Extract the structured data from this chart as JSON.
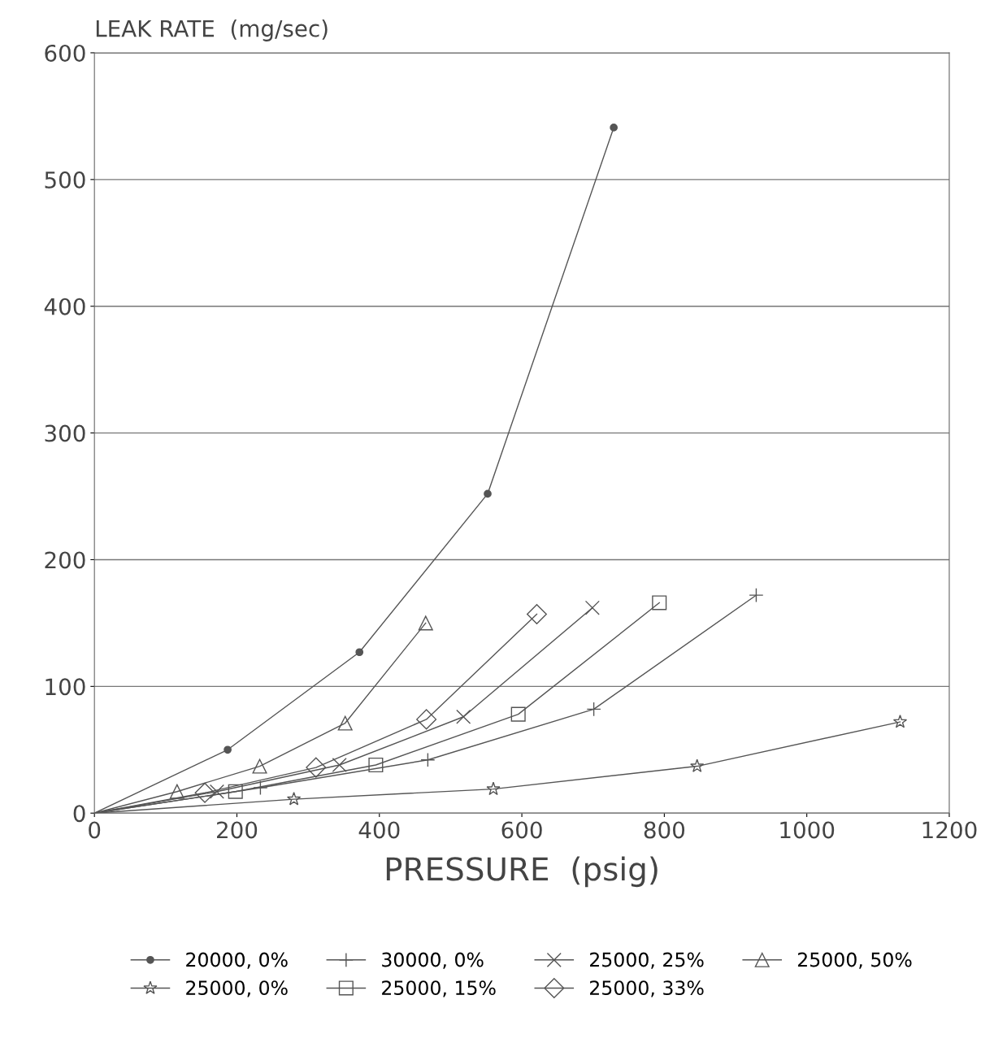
{
  "chart_data": {
    "type": "line",
    "ylabel": "LEAK RATE  (mg/sec)",
    "xlabel": "PRESSURE  (psig)",
    "xlim": [
      0,
      1200
    ],
    "xticks": [
      0,
      200,
      400,
      600,
      800,
      1000,
      1200
    ],
    "ylim": [
      0,
      600
    ],
    "yticks": [
      0,
      100,
      200,
      300,
      400,
      500,
      600
    ],
    "grid": "y",
    "legend": "bottom",
    "line_style": "solid",
    "series": [
      {
        "name": "20000, 0%",
        "color": "#555555",
        "marker": "circle",
        "x": [
          0,
          187,
          372,
          552,
          729
        ],
        "values": [
          0,
          50,
          127,
          252,
          541
        ]
      },
      {
        "name": "25000, 0%",
        "color": "#555555",
        "marker": "star",
        "x": [
          0,
          280,
          560,
          846,
          1131
        ],
        "values": [
          0,
          11,
          19,
          37,
          72
        ]
      },
      {
        "name": "30000, 0%",
        "color": "#555555",
        "marker": "cross",
        "x": [
          0,
          233,
          468,
          701,
          929
        ],
        "values": [
          0,
          20,
          42,
          82,
          172
        ]
      },
      {
        "name": "25000, 15%",
        "color": "#555555",
        "marker": "square",
        "x": [
          0,
          198,
          395,
          595,
          793
        ],
        "values": [
          0,
          17,
          38,
          78,
          166
        ]
      },
      {
        "name": "25000, 25%",
        "color": "#555555",
        "marker": "x",
        "x": [
          0,
          172,
          344,
          518,
          699
        ],
        "values": [
          0,
          17,
          38,
          76,
          162
        ]
      },
      {
        "name": "25000, 33%",
        "color": "#555555",
        "marker": "diamond",
        "x": [
          0,
          155,
          311,
          466,
          621
        ],
        "values": [
          0,
          16,
          36,
          74,
          157
        ]
      },
      {
        "name": "25000, 50%",
        "color": "#555555",
        "marker": "triangle",
        "x": [
          0,
          116,
          232,
          352,
          465
        ],
        "values": [
          0,
          17,
          37,
          71,
          150
        ]
      }
    ]
  }
}
